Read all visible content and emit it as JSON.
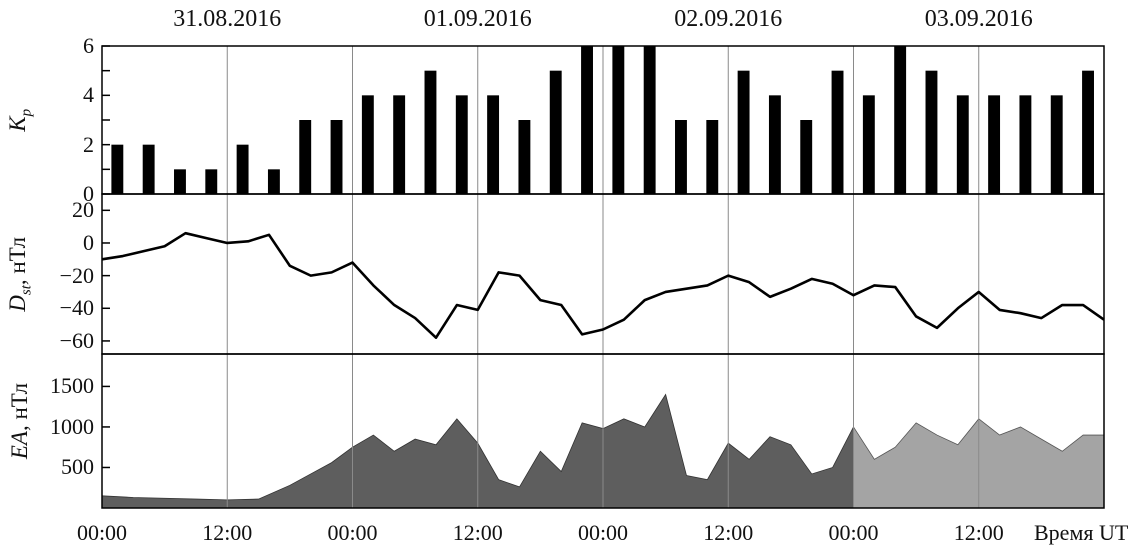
{
  "chart_data": [
    {
      "type": "bar",
      "panel": "kp",
      "ylabel_main": "K",
      "ylabel_sub": "p",
      "ylim": [
        0,
        6
      ],
      "yticks": [
        "0",
        "2",
        "4",
        "6"
      ],
      "values": [
        2,
        2,
        1,
        1,
        2,
        1,
        3,
        3,
        4,
        4,
        5,
        4,
        4,
        3,
        5,
        6,
        6,
        6,
        3,
        3,
        5,
        4,
        3,
        5,
        4,
        6,
        5,
        4,
        4,
        4,
        4,
        5
      ],
      "color": "#000000"
    },
    {
      "type": "line",
      "panel": "dst",
      "ylabel_main": "D",
      "ylabel_sub": "st",
      "ylabel_unit": ", нТл",
      "ylim": [
        -68,
        30
      ],
      "yticks": [
        "20",
        "0",
        "−20",
        "−40",
        "−60"
      ],
      "x_hours": [
        0,
        2,
        4,
        6,
        8,
        10,
        12,
        14,
        16,
        18,
        20,
        22,
        24,
        26,
        28,
        30,
        32,
        34,
        36,
        38,
        40,
        42,
        44,
        46,
        48,
        50,
        52,
        54,
        56,
        58,
        60,
        62,
        64,
        66,
        68,
        70,
        72,
        74,
        76,
        78,
        80,
        82,
        84,
        86,
        88,
        90,
        92,
        94,
        96
      ],
      "values": [
        -10,
        -8,
        -5,
        -2,
        6,
        3,
        0,
        1,
        5,
        -14,
        -20,
        -18,
        -12,
        -26,
        -38,
        -46,
        -58,
        -38,
        -41,
        -18,
        -20,
        -35,
        -38,
        -56,
        -53,
        -47,
        -35,
        -30,
        -28,
        -26,
        -20,
        -24,
        -33,
        -28,
        -22,
        -25,
        -32,
        -26,
        -27,
        -45,
        -52,
        -40,
        -30,
        -41,
        -43,
        -46,
        -38,
        -38,
        -47
      ],
      "color": "#000000"
    },
    {
      "type": "area",
      "panel": "ea",
      "ylabel_main": "EA",
      "ylabel_unit": ", нТл",
      "ylim": [
        0,
        1900
      ],
      "yticks": [
        "1500",
        "1000",
        "500"
      ],
      "x_hours": [
        0,
        3,
        6,
        9,
        12,
        15,
        18,
        20,
        22,
        24,
        26,
        28,
        30,
        32,
        34,
        36,
        38,
        40,
        42,
        44,
        46,
        48,
        50,
        52,
        54,
        56,
        58,
        60,
        62,
        64,
        66,
        68,
        70,
        72,
        74,
        76,
        78,
        80,
        82,
        84,
        86,
        88,
        90,
        92,
        94,
        96
      ],
      "values": [
        150,
        130,
        120,
        110,
        100,
        110,
        280,
        420,
        560,
        750,
        900,
        700,
        850,
        780,
        1100,
        800,
        350,
        260,
        700,
        450,
        1050,
        980,
        1100,
        1000,
        1400,
        400,
        350,
        800,
        600,
        880,
        780,
        420,
        500,
        1000,
        600,
        750,
        1050,
        900,
        780,
        1100,
        900,
        1000,
        850,
        700,
        900,
        900
      ],
      "colors": {
        "dark": "#5e5e5e",
        "light": "#a4a4a4"
      },
      "light_from_hour": 72
    }
  ],
  "dates": [
    "31.08.2016",
    "01.09.2016",
    "02.09.2016",
    "03.09.2016"
  ],
  "xticks": [
    "00:00",
    "12:00",
    "00:00",
    "12:00",
    "00:00",
    "12:00",
    "00:00",
    "12:00"
  ],
  "xaxis_title": "Время UT"
}
